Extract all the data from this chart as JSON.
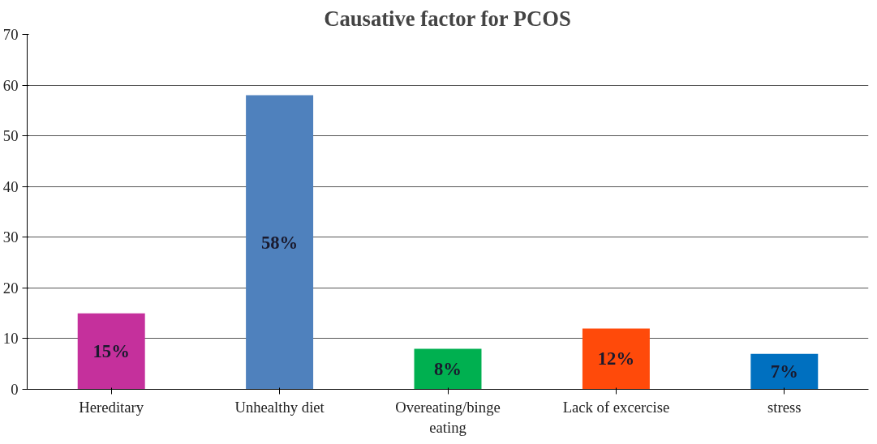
{
  "chart_data": {
    "type": "bar",
    "title": "Causative factor for PCOS",
    "categories": [
      "Hereditary",
      "Unhealthy diet",
      "Overeating/binge eating",
      "Lack of excercise",
      "stress"
    ],
    "values": [
      15,
      58,
      8,
      12,
      7
    ],
    "colors": [
      "#c5309c",
      "#4f81bd",
      "#00b050",
      "#ff4a0a",
      "#0070c0"
    ],
    "value_labels": [
      "15%",
      "58%",
      "8%",
      "12%",
      "7%"
    ],
    "ylim": [
      0,
      70
    ],
    "yticks": [
      0,
      10,
      20,
      30,
      40,
      50,
      60,
      70
    ],
    "grid": "y"
  }
}
